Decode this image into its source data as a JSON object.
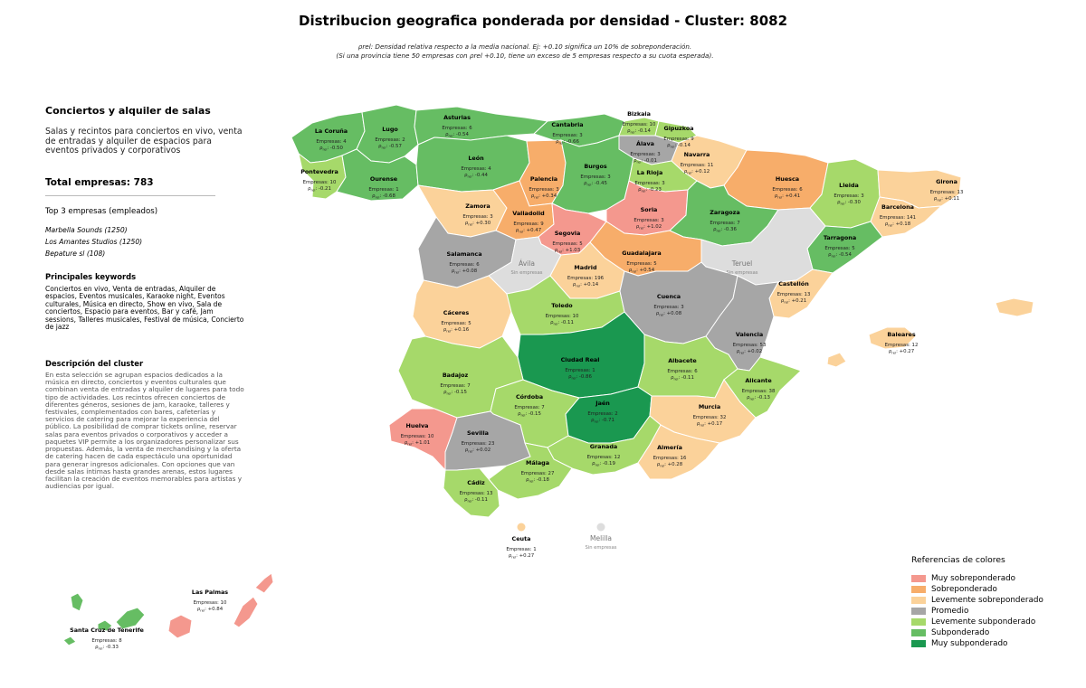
{
  "title": "Distribucion geografica ponderada por densidad - Cluster: 8082",
  "note_line1": "ρrel: Densidad relativa respecto a la media nacional. Ej: +0.10 significa un 10% de sobreponderación.",
  "note_line2": "(Si una provincia tiene 50 empresas con ρrel +0.10, tiene un exceso de 5 empresas respecto a su cuota esperada).",
  "sidebar": {
    "heading": "Conciertos y alquiler de salas",
    "subtitle": "Salas y recintos para conciertos en vivo, venta de entradas y alquiler de espacios para eventos privados y corporativos",
    "total": "Total empresas: 783",
    "top_title": "Top 3 empresas (empleados)",
    "top": [
      "Marbella Sounds (1250)",
      "Los Amantes Studios (1250)",
      "Bepature sl (108)"
    ],
    "keywords_title": "Principales keywords",
    "keywords": "Conciertos en vivo, Venta de entradas, Alquiler de espacios, Eventos musicales, Karaoke night, Eventos culturales, Música en directo, Show en vivo, Sala de conciertos, Espacio para eventos, Bar y café, Jam sessions, Talleres musicales, Festival de música, Concierto de jazz",
    "desc_title": "Descripción del cluster",
    "desc": "En esta selección se agrupan espacios dedicados a la música en directo, conciertos y eventos culturales que combinan venta de entradas y alquiler de lugares para todo tipo de actividades. Los recintos ofrecen conciertos de diferentes géneros, sesiones de jam, karaoke, talleres y festivales, complementados con bares, cafeterías y servicios de catering para mejorar la experiencia del público. La posibilidad de comprar tickets online, reservar salas para eventos privados o corporativos y acceder a paquetes VIP permite a los organizadores personalizar sus propuestas. Además, la venta de merchandising y la oferta de catering hacen de cada espectáculo una oportunidad para generar ingresos adicionales. Con opciones que van desde salas íntimas hasta grandes arenas, estos lugares facilitan la creación de eventos memorables para artistas y audiencias por igual."
  },
  "colors": {
    "muy_sobre": "#f4988e",
    "sobre": "#f7ad6a",
    "lev_sobre": "#fbd29a",
    "promedio": "#a6a6a6",
    "lev_sub": "#a6d96a",
    "sub": "#66bd63",
    "muy_sub": "#1a9850",
    "sin": "#dddddd"
  },
  "legend": {
    "title": "Referencias de colores",
    "items": [
      {
        "key": "muy_sobre",
        "label": "Muy sobreponderado"
      },
      {
        "key": "sobre",
        "label": "Sobreponderado"
      },
      {
        "key": "lev_sobre",
        "label": "Levemente sobreponderado"
      },
      {
        "key": "promedio",
        "label": "Promedio"
      },
      {
        "key": "lev_sub",
        "label": "Levemente subponderado"
      },
      {
        "key": "sub",
        "label": "Subponderado"
      },
      {
        "key": "muy_sub",
        "label": "Muy subponderado"
      }
    ]
  },
  "provinces": [
    {
      "name": "La Coruña",
      "empresas": 4,
      "rho": "-0.50",
      "cat": "sub"
    },
    {
      "name": "Lugo",
      "empresas": 2,
      "rho": "-0.57",
      "cat": "sub"
    },
    {
      "name": "Asturias",
      "empresas": 6,
      "rho": "-0.54",
      "cat": "sub"
    },
    {
      "name": "Cantabria",
      "empresas": 3,
      "rho": "-0.66",
      "cat": "sub"
    },
    {
      "name": "Bizkaia",
      "empresas": 10,
      "rho": "-0.14",
      "cat": "lev_sub"
    },
    {
      "name": "Gipuzkoa",
      "empresas": 9,
      "rho": "-0.14",
      "cat": "lev_sub"
    },
    {
      "name": "Álava",
      "empresas": 3,
      "rho": "-0.01",
      "cat": "promedio"
    },
    {
      "name": "Navarra",
      "empresas": 11,
      "rho": "+0.12",
      "cat": "lev_sobre"
    },
    {
      "name": "Pontevedra",
      "empresas": 10,
      "rho": "-0.21",
      "cat": "lev_sub"
    },
    {
      "name": "Ourense",
      "empresas": 1,
      "rho": "-0.68",
      "cat": "sub"
    },
    {
      "name": "León",
      "empresas": 4,
      "rho": "-0.44",
      "cat": "sub"
    },
    {
      "name": "Palencia",
      "empresas": 3,
      "rho": "+0.34",
      "cat": "sobre"
    },
    {
      "name": "Burgos",
      "empresas": 3,
      "rho": "-0.45",
      "cat": "sub"
    },
    {
      "name": "La Rioja",
      "empresas": 3,
      "rho": "-0.23",
      "cat": "lev_sub"
    },
    {
      "name": "Huesca",
      "empresas": 6,
      "rho": "+0.41",
      "cat": "sobre"
    },
    {
      "name": "Lleida",
      "empresas": 3,
      "rho": "-0.30",
      "cat": "lev_sub"
    },
    {
      "name": "Girona",
      "empresas": 13,
      "rho": "+0.11",
      "cat": "lev_sobre"
    },
    {
      "name": "Barcelona",
      "empresas": 141,
      "rho": "+0.18",
      "cat": "lev_sobre"
    },
    {
      "name": "Zamora",
      "empresas": 3,
      "rho": "+0.30",
      "cat": "lev_sobre"
    },
    {
      "name": "Valladolid",
      "empresas": 9,
      "rho": "+0.47",
      "cat": "sobre"
    },
    {
      "name": "Soria",
      "empresas": 3,
      "rho": "+1.02",
      "cat": "muy_sobre"
    },
    {
      "name": "Zaragoza",
      "empresas": 7,
      "rho": "-0.36",
      "cat": "sub"
    },
    {
      "name": "Tarragona",
      "empresas": 5,
      "rho": "-0.54",
      "cat": "sub"
    },
    {
      "name": "Segovia",
      "empresas": 5,
      "rho": "+1.03",
      "cat": "muy_sobre"
    },
    {
      "name": "Salamanca",
      "empresas": 6,
      "rho": "+0.08",
      "cat": "promedio"
    },
    {
      "name": "Ávila",
      "empresas": null,
      "rho": null,
      "cat": "sin"
    },
    {
      "name": "Madrid",
      "empresas": 196,
      "rho": "+0.14",
      "cat": "lev_sobre"
    },
    {
      "name": "Guadalajara",
      "empresas": 5,
      "rho": "+0.54",
      "cat": "sobre"
    },
    {
      "name": "Teruel",
      "empresas": null,
      "rho": null,
      "cat": "sin"
    },
    {
      "name": "Castellón",
      "empresas": 13,
      "rho": "+0.21",
      "cat": "lev_sobre"
    },
    {
      "name": "Cáceres",
      "empresas": 5,
      "rho": "+0.16",
      "cat": "lev_sobre"
    },
    {
      "name": "Toledo",
      "empresas": 10,
      "rho": "-0.11",
      "cat": "lev_sub"
    },
    {
      "name": "Cuenca",
      "empresas": 3,
      "rho": "+0.08",
      "cat": "promedio"
    },
    {
      "name": "Valencia",
      "empresas": 53,
      "rho": "+0.02",
      "cat": "promedio"
    },
    {
      "name": "Baleares",
      "empresas": 12,
      "rho": "+0.27",
      "cat": "lev_sobre"
    },
    {
      "name": "Ciudad Real",
      "empresas": 1,
      "rho": "-0.86",
      "cat": "muy_sub"
    },
    {
      "name": "Badajoz",
      "empresas": 7,
      "rho": "-0.15",
      "cat": "lev_sub"
    },
    {
      "name": "Albacete",
      "empresas": 6,
      "rho": "-0.11",
      "cat": "lev_sub"
    },
    {
      "name": "Alicante",
      "empresas": 38,
      "rho": "-0.13",
      "cat": "lev_sub"
    },
    {
      "name": "Córdoba",
      "empresas": 7,
      "rho": "-0.15",
      "cat": "lev_sub"
    },
    {
      "name": "Jaén",
      "empresas": 2,
      "rho": "-0.71",
      "cat": "muy_sub"
    },
    {
      "name": "Murcia",
      "empresas": 32,
      "rho": "+0.17",
      "cat": "lev_sobre"
    },
    {
      "name": "Huelva",
      "empresas": 10,
      "rho": "+1.01",
      "cat": "muy_sobre"
    },
    {
      "name": "Sevilla",
      "empresas": 23,
      "rho": "+0.02",
      "cat": "promedio"
    },
    {
      "name": "Granada",
      "empresas": 12,
      "rho": "-0.19",
      "cat": "lev_sub"
    },
    {
      "name": "Almería",
      "empresas": 16,
      "rho": "+0.28",
      "cat": "lev_sobre"
    },
    {
      "name": "Málaga",
      "empresas": 27,
      "rho": "-0.18",
      "cat": "lev_sub"
    },
    {
      "name": "Cádiz",
      "empresas": 13,
      "rho": "-0.11",
      "cat": "lev_sub"
    },
    {
      "name": "Ceuta",
      "empresas": 1,
      "rho": "+0.27",
      "cat": "lev_sobre"
    },
    {
      "name": "Melilla",
      "empresas": null,
      "rho": null,
      "cat": "sin"
    },
    {
      "name": "Las Palmas",
      "empresas": 10,
      "rho": "+0.84",
      "cat": "muy_sobre"
    },
    {
      "name": "Santa Cruz de Tenerife",
      "empresas": 8,
      "rho": "-0.33",
      "cat": "sub"
    }
  ],
  "labels": {
    "empresas_prefix": "Empresas: ",
    "rho_symbol": "ρ",
    "rho_sub": "rel",
    "sin_empresas": "Sin empresas"
  }
}
